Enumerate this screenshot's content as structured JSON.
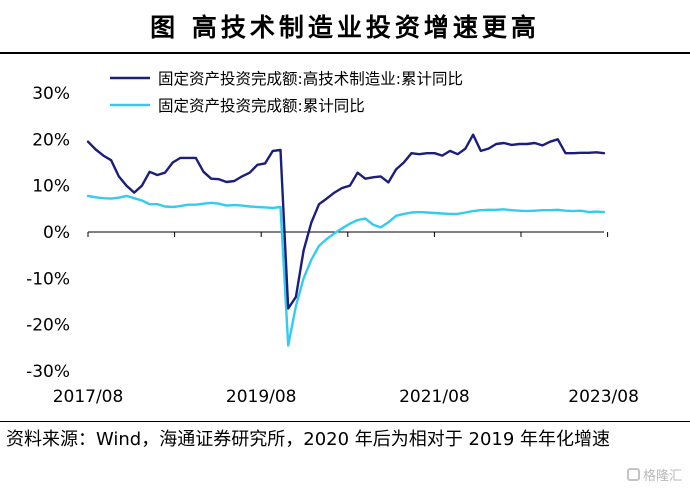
{
  "figure_title": "图    高技术制造业投资增速更高",
  "source_note": "资料来源：Wind，海通证券研究所，2020 年后为相对于 2019 年年化增速",
  "watermark": "格隆汇",
  "colors": {
    "series_1": "#1b1e7a",
    "series_2": "#33ccf0",
    "axis": "#000000"
  },
  "chart_data": {
    "type": "line",
    "x": [
      "2017/08",
      "2017/10",
      "2017/11",
      "2017/12",
      "2018/02",
      "2018/03",
      "2018/04",
      "2018/05",
      "2018/06",
      "2018/07",
      "2018/08",
      "2018/09",
      "2018/10",
      "2018/11",
      "2018/12",
      "2019/02",
      "2019/03",
      "2019/04",
      "2019/05",
      "2019/06",
      "2019/07",
      "2019/08",
      "2019/09",
      "2019/10",
      "2019/11",
      "2019/12",
      "2020/02",
      "2020/03",
      "2020/04",
      "2020/05",
      "2020/06",
      "2020/07",
      "2020/08",
      "2020/09",
      "2020/10",
      "2020/11",
      "2020/12",
      "2021/02",
      "2021/03",
      "2021/04",
      "2021/05",
      "2021/06",
      "2021/07",
      "2021/08",
      "2021/09",
      "2021/10",
      "2021/11",
      "2021/12",
      "2022/02",
      "2022/03",
      "2022/04",
      "2022/05",
      "2022/06",
      "2022/07",
      "2022/08",
      "2022/09",
      "2022/10",
      "2022/11",
      "2022/12",
      "2023/02",
      "2023/03",
      "2023/04",
      "2023/05",
      "2023/06",
      "2023/07",
      "2023/08",
      "2023/09",
      "2023/10"
    ],
    "series": [
      {
        "name": "固定资产投资完成额:高技术制造业:累计同比",
        "values": [
          19.5,
          17.8,
          16.5,
          15.5,
          12.0,
          10.0,
          8.5,
          10.0,
          13.0,
          12.3,
          12.8,
          15.0,
          16.0,
          16.0,
          16.0,
          13.0,
          11.5,
          11.4,
          10.8,
          11.0,
          12.0,
          12.8,
          14.5,
          14.8,
          17.5,
          17.7,
          -16.5,
          -14.0,
          -4.0,
          2.0,
          6.0,
          7.2,
          8.5,
          9.5,
          10.0,
          12.8,
          11.5,
          11.8,
          12.0,
          10.7,
          13.5,
          15.0,
          17.0,
          16.8,
          17.0,
          17.0,
          16.5,
          17.5,
          16.8,
          18.0,
          21.0,
          17.5,
          18.0,
          19.0,
          19.2,
          18.8,
          19.0,
          19.0,
          19.2,
          18.7,
          19.5,
          20.0,
          17.0,
          17.0,
          17.1,
          17.1,
          17.2,
          17.0
        ]
      },
      {
        "name": "固定资产投资完成额:累计同比",
        "values": [
          7.8,
          7.5,
          7.3,
          7.2,
          7.4,
          7.8,
          7.3,
          6.8,
          6.0,
          6.0,
          5.5,
          5.4,
          5.6,
          5.9,
          5.9,
          6.1,
          6.3,
          6.1,
          5.7,
          5.8,
          5.7,
          5.5,
          5.4,
          5.3,
          5.2,
          5.4,
          -24.5,
          -16.0,
          -10.0,
          -6.0,
          -3.0,
          -1.5,
          -0.3,
          0.8,
          1.8,
          2.6,
          2.9,
          1.6,
          1.0,
          2.1,
          3.5,
          3.9,
          4.2,
          4.3,
          4.2,
          4.1,
          4.0,
          3.9,
          3.9,
          4.2,
          4.5,
          4.7,
          4.8,
          4.8,
          4.9,
          4.7,
          4.6,
          4.5,
          4.6,
          4.7,
          4.7,
          4.8,
          4.6,
          4.5,
          4.6,
          4.3,
          4.4,
          4.3
        ]
      }
    ],
    "x_tick_labels": [
      "2017/08",
      "2019/08",
      "2021/08",
      "2023/08"
    ],
    "y_tick_labels": [
      "30%",
      "20%",
      "10%",
      "0%",
      "-10%",
      "-20%",
      "-30%"
    ],
    "ylim": [
      -30,
      30
    ],
    "xlabel": "",
    "ylabel": "",
    "legend_position": "top"
  }
}
